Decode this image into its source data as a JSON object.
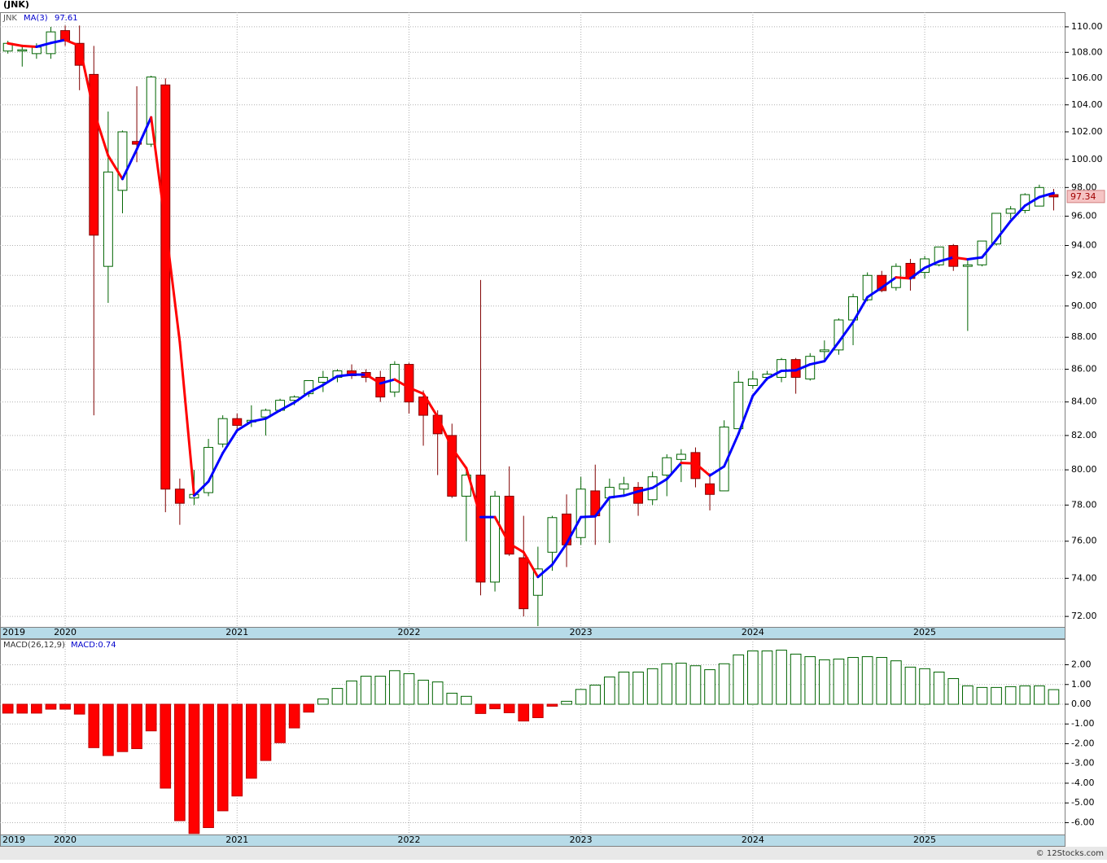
{
  "chart_data": [
    {
      "type": "candlestick",
      "title": "(JNK)",
      "name": "JNK",
      "log": true,
      "grid": true,
      "up_color": "#006400",
      "down_color": "#ff0000",
      "wick_down_color": "#800000",
      "xlim": [
        -0.55,
        73.77
      ],
      "ylim": [
        71.46,
        111.16
      ],
      "xticks": [
        {
          "value": -0.55,
          "label": "2019"
        },
        {
          "value": 4,
          "label": "2020"
        },
        {
          "value": 16,
          "label": "2021"
        },
        {
          "value": 28,
          "label": "2022"
        },
        {
          "value": 40,
          "label": "2023"
        },
        {
          "value": 52,
          "label": "2024"
        },
        {
          "value": 64,
          "label": "2025"
        }
      ],
      "yticks": [
        {
          "value": 72,
          "label": "72.00"
        },
        {
          "value": 74,
          "label": "74.00"
        },
        {
          "value": 76,
          "label": "76.00"
        },
        {
          "value": 78,
          "label": "78.00"
        },
        {
          "value": 80,
          "label": "80.00"
        },
        {
          "value": 82,
          "label": "82.00"
        },
        {
          "value": 84,
          "label": "84.00"
        },
        {
          "value": 86,
          "label": "86.00"
        },
        {
          "value": 88,
          "label": "88.00"
        },
        {
          "value": 90,
          "label": "90.00"
        },
        {
          "value": 92,
          "label": "92.00"
        },
        {
          "value": 94,
          "label": "94.00"
        },
        {
          "value": 96,
          "label": "96.00"
        },
        {
          "value": 98,
          "label": "98.00"
        },
        {
          "value": 100,
          "label": "100.00"
        },
        {
          "value": 102,
          "label": "102.00"
        },
        {
          "value": 104,
          "label": "104.00"
        },
        {
          "value": 106,
          "label": "106.00"
        },
        {
          "value": 108,
          "label": "108.00"
        },
        {
          "value": 110,
          "label": "110.00"
        }
      ],
      "open": [
        108.1,
        108.1,
        107.9,
        107.9,
        109.7,
        108.7,
        106.3,
        92.6,
        97.8,
        101.3,
        101.1,
        105.5,
        78.9,
        78.4,
        78.7,
        81.5,
        83.0,
        82.8,
        83.1,
        83.5,
        84.1,
        84.5,
        85.2,
        85.5,
        85.9,
        85.8,
        85.5,
        84.6,
        86.3,
        84.3,
        83.2,
        82.0,
        78.5,
        79.7,
        73.8,
        78.5,
        75.1,
        73.1,
        75.4,
        77.5,
        76.2,
        78.8,
        78.4,
        78.9,
        79.0,
        78.3,
        79.7,
        80.6,
        81.0,
        79.2,
        78.8,
        82.4,
        85.0,
        85.5,
        85.5,
        86.6,
        85.4,
        87.1,
        87.2,
        89.1,
        90.4,
        92.0,
        91.2,
        92.8,
        92.2,
        92.7,
        94.0,
        92.6,
        92.7,
        94.1,
        96.2,
        96.4,
        96.7,
        97.5
      ],
      "high": [
        108.9,
        108.4,
        108.7,
        110.0,
        110.1,
        110.1,
        108.5,
        103.5,
        102.1,
        105.4,
        106.2,
        106.0,
        79.5,
        80.0,
        81.8,
        83.2,
        83.3,
        83.8,
        83.6,
        84.2,
        84.4,
        85.3,
        85.9,
        86.0,
        86.3,
        86.0,
        85.9,
        86.5,
        86.4,
        84.7,
        83.5,
        82.7,
        80.1,
        91.7,
        78.8,
        80.2,
        77.4,
        75.7,
        77.4,
        78.6,
        79.6,
        80.3,
        79.5,
        79.6,
        79.3,
        79.9,
        80.9,
        81.2,
        81.3,
        79.8,
        82.9,
        85.9,
        85.9,
        85.9,
        86.7,
        86.7,
        87.0,
        87.8,
        89.2,
        90.8,
        92.2,
        92.3,
        92.8,
        93.1,
        93.3,
        93.9,
        94.1,
        93.0,
        94.3,
        96.2,
        96.7,
        97.6,
        98.2,
        97.9
      ],
      "low": [
        107.9,
        106.9,
        107.5,
        107.5,
        108.5,
        105.1,
        83.2,
        90.2,
        96.2,
        99.8,
        100.9,
        77.6,
        76.9,
        78.0,
        78.5,
        81.3,
        82.3,
        82.5,
        82.0,
        83.4,
        83.8,
        84.3,
        84.6,
        85.2,
        85.4,
        85.2,
        84.0,
        84.3,
        83.3,
        81.4,
        79.7,
        78.4,
        76.0,
        73.1,
        73.3,
        75.2,
        72.0,
        71.5,
        74.4,
        74.6,
        75.8,
        75.8,
        75.9,
        78.5,
        77.4,
        78.0,
        78.5,
        79.3,
        79.0,
        77.7,
        78.8,
        82.4,
        84.8,
        85.3,
        85.2,
        84.5,
        85.3,
        86.6,
        86.9,
        87.5,
        90.3,
        90.9,
        91.0,
        91.0,
        91.8,
        92.6,
        92.3,
        88.4,
        92.6,
        94.0,
        95.8,
        96.2,
        96.7,
        96.4
      ],
      "close": [
        108.7,
        108.2,
        108.4,
        109.6,
        108.9,
        107.0,
        94.7,
        99.1,
        102.0,
        101.1,
        106.1,
        78.9,
        78.1,
        78.6,
        81.3,
        83.0,
        82.6,
        82.9,
        83.5,
        84.1,
        84.3,
        85.3,
        85.5,
        85.9,
        85.6,
        85.5,
        84.3,
        86.3,
        84.0,
        83.2,
        82.1,
        78.5,
        79.7,
        73.8,
        78.5,
        75.3,
        72.4,
        74.5,
        77.3,
        75.8,
        78.9,
        77.4,
        79.0,
        79.2,
        78.1,
        79.6,
        80.7,
        80.9,
        79.5,
        78.6,
        82.5,
        85.2,
        85.4,
        85.7,
        86.6,
        85.5,
        86.8,
        87.2,
        89.1,
        90.6,
        92.0,
        91.0,
        92.6,
        91.8,
        93.1,
        93.9,
        92.6,
        92.7,
        94.3,
        96.2,
        96.5,
        97.5,
        98.0,
        97.34
      ],
      "ma": {
        "name": "MA(3)",
        "up_color": "#0000ff",
        "down_color": "#ff0000",
        "values": [
          108.7,
          108.5,
          108.43,
          108.73,
          108.97,
          108.5,
          103.53,
          100.27,
          98.6,
          100.73,
          103.07,
          95.37,
          87.7,
          78.53,
          79.33,
          80.97,
          82.3,
          82.83,
          83,
          83.5,
          83.97,
          84.57,
          85.03,
          85.57,
          85.67,
          85.67,
          85.13,
          85.37,
          84.87,
          84.5,
          83.1,
          81.27,
          80.1,
          77.33,
          77.33,
          75.87,
          75.4,
          74.07,
          74.73,
          75.87,
          77.33,
          77.37,
          78.43,
          78.53,
          78.77,
          78.97,
          79.47,
          80.4,
          80.37,
          79.67,
          80.2,
          82.1,
          84.37,
          85.43,
          85.9,
          85.93,
          86.3,
          86.5,
          87.7,
          88.97,
          90.57,
          91.2,
          91.87,
          91.8,
          92.5,
          92.93,
          93.2,
          93.07,
          93.2,
          94.4,
          95.67,
          96.73,
          97.33,
          97.61
        ]
      }
    },
    {
      "type": "bar",
      "name": "MACD(26,12,9)",
      "legend": "MACD:0.74",
      "grid": true,
      "up_color": "#006400",
      "down_color": "#ff0000",
      "ylim": [
        -6.6,
        3.3
      ],
      "yticks": [
        {
          "value": -6,
          "label": "-6.00"
        },
        {
          "value": -5,
          "label": "-5.00"
        },
        {
          "value": -4,
          "label": "-4.00"
        },
        {
          "value": -3,
          "label": "-3.00"
        },
        {
          "value": -2,
          "label": "-2.00"
        },
        {
          "value": -1,
          "label": "-1.00"
        },
        {
          "value": 0,
          "label": "0.00"
        },
        {
          "value": 1,
          "label": "1.00"
        },
        {
          "value": 2,
          "label": "2.00"
        }
      ],
      "values": [
        -0.45,
        -0.45,
        -0.45,
        -0.25,
        -0.25,
        -0.5,
        -2.2,
        -2.6,
        -2.4,
        -2.25,
        -1.35,
        -4.25,
        -5.9,
        -6.55,
        -6.25,
        -5.4,
        -4.65,
        -3.75,
        -2.85,
        -1.95,
        -1.2,
        -0.4,
        0.27,
        0.8,
        1.18,
        1.42,
        1.42,
        1.7,
        1.55,
        1.22,
        1.13,
        0.56,
        0.4,
        -0.47,
        -0.23,
        -0.43,
        -0.85,
        -0.68,
        -0.1,
        0.15,
        0.75,
        0.97,
        1.38,
        1.63,
        1.63,
        1.8,
        2.05,
        2.08,
        1.95,
        1.75,
        2.05,
        2.5,
        2.7,
        2.7,
        2.74,
        2.54,
        2.41,
        2.25,
        2.29,
        2.37,
        2.41,
        2.37,
        2.2,
        1.88,
        1.8,
        1.63,
        1.3,
        0.93,
        0.85,
        0.85,
        0.89,
        0.93,
        0.93,
        0.74
      ]
    }
  ],
  "footer": "© 12Stocks.com"
}
